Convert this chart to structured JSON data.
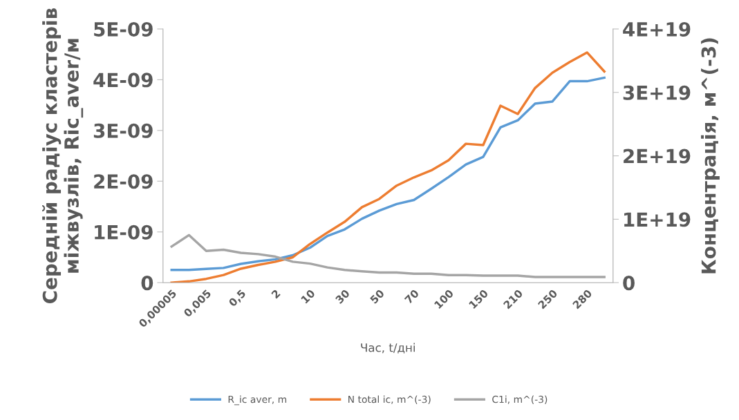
{
  "chart_data": {
    "type": "line",
    "xlabel": "Час, t/дні",
    "ylabel": "Середній радіус кластерів\nміжвузлів, Ric_aver/м",
    "y2label": "Концентрація, м^(-3)",
    "categories": [
      "0,00005",
      null,
      "0,005",
      null,
      "0,5",
      null,
      "2",
      null,
      "10",
      null,
      "30",
      null,
      "50",
      null,
      "70",
      null,
      "100",
      null,
      "150",
      null,
      "210",
      null,
      "250",
      null,
      "280",
      null
    ],
    "series": [
      {
        "name": "R_ic aver, m",
        "color": "#5b9bd5",
        "values": [
          2.5e-10,
          2.5e-10,
          2.7e-10,
          2.9e-10,
          3.7e-10,
          4.2e-10,
          4.6e-10,
          5.4e-10,
          6.9e-10,
          9.2e-10,
          1.05e-09,
          1.26e-09,
          1.42e-09,
          1.55e-09,
          1.63e-09,
          1.85e-09,
          2.08e-09,
          2.33e-09,
          2.48e-09,
          3.06e-09,
          3.2e-09,
          3.53e-09,
          3.57e-09,
          3.97e-09,
          3.97e-09,
          4.04e-09
        ]
      },
      {
        "name": "N total ic, m^(-3)",
        "color": "#ed7d31",
        "axis": "y2",
        "values": [
          0,
          2e+17,
          6e+17,
          1.2e+18,
          2.2e+18,
          2.8e+18,
          3.3e+18,
          4e+18,
          6.1e+18,
          7.9e+18,
          9.6e+18,
          1.19e+19,
          1.32e+19,
          1.53e+19,
          1.66e+19,
          1.77e+19,
          1.93e+19,
          2.19e+19,
          2.17e+19,
          2.79e+19,
          2.66e+19,
          3.07e+19,
          3.31e+19,
          3.48e+19,
          3.63e+19,
          3.33e+19
        ]
      },
      {
        "name": "C1i, m^(-3)",
        "color": "#a5a5a5",
        "axis": "y2",
        "values": [
          5.7e+18,
          7.5e+18,
          5e+18,
          5.2e+18,
          4.7e+18,
          4.5e+18,
          4.1e+18,
          3.3e+18,
          3e+18,
          2.4e+18,
          2e+18,
          1.8e+18,
          1.6e+18,
          1.6e+18,
          1.4e+18,
          1.4e+18,
          1.2e+18,
          1.2e+18,
          1.1e+18,
          1.1e+18,
          1.1e+18,
          9e+17,
          9e+17,
          9e+17,
          9e+17,
          9e+17
        ]
      }
    ],
    "ylim": [
      0,
      5e-09
    ],
    "yticks": [
      {
        "value": 0,
        "label": "0"
      },
      {
        "value": 1e-09,
        "label": "1E-09"
      },
      {
        "value": 2e-09,
        "label": "2E-09"
      },
      {
        "value": 3e-09,
        "label": "3E-09"
      },
      {
        "value": 4e-09,
        "label": "4E-09"
      },
      {
        "value": 5e-09,
        "label": "5E-09"
      }
    ],
    "y2lim": [
      0,
      4e+19
    ],
    "y2ticks": [
      {
        "value": 0,
        "label": "0"
      },
      {
        "value": 1e+19,
        "label": "1E+19"
      },
      {
        "value": 2e+19,
        "label": "2E+19"
      },
      {
        "value": 3e+19,
        "label": "3E+19"
      },
      {
        "value": 4e+19,
        "label": "4E+19"
      }
    ],
    "grid": false,
    "legend": "bottom",
    "marker": "none",
    "line_style": "solid"
  }
}
